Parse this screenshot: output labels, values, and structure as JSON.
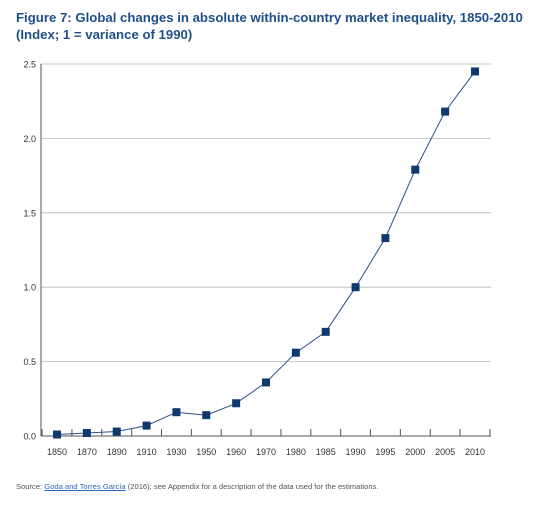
{
  "figure": {
    "title": "Figure 7: Global changes in absolute within-country market inequality, 1850-2010",
    "subtitle": "(Index; 1 = variance of 1990)"
  },
  "colors": {
    "title": "#1f4f8a",
    "line": "#2e4f86",
    "marker": "#0f3a70",
    "grid": "#b7b7b7",
    "axis": "#555555"
  },
  "chart_data": {
    "type": "line",
    "title": "Figure 7: Global changes in absolute within-country market inequality, 1850-2010",
    "subtitle": "(Index; 1 = variance of 1990)",
    "xlabel": "",
    "ylabel": "",
    "categories": [
      "1850",
      "1870",
      "1890",
      "1910",
      "1930",
      "1950",
      "1960",
      "1970",
      "1980",
      "1985",
      "1990",
      "1995",
      "2000",
      "2005",
      "2010"
    ],
    "series": [
      {
        "values": [
          0.01,
          0.02,
          0.03,
          0.07,
          0.16,
          0.14,
          0.22,
          0.36,
          0.56,
          0.7,
          1.0,
          1.33,
          1.79,
          2.18,
          2.45
        ]
      }
    ],
    "yticks": [
      "0.0",
      "0.5",
      "1.0",
      "1.5",
      "2.0",
      "2.5"
    ],
    "ylim": [
      0,
      2.5
    ],
    "grid": "horizontal",
    "legend": "none",
    "marker": "square"
  },
  "source": {
    "prefix": "Source: ",
    "link_text": "Goda and Torres García",
    "suffix": " (2016); see Appendix for a description of the data used for the estimations."
  }
}
